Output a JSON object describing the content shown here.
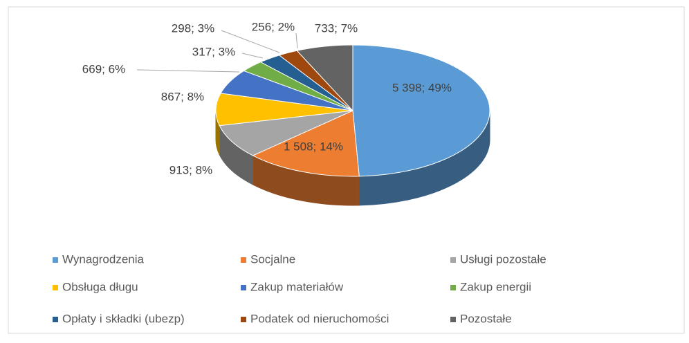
{
  "chart_data": {
    "type": "pie3d",
    "categories": [
      "Wynagrodzenia",
      "Socjalne",
      "Usługi pozostałe",
      "Obsługa długu",
      "Zakup materiałów",
      "Zakup energii",
      "Opłaty i składki (ubezp)",
      "Podatek od nieruchomości",
      "Pozostałe"
    ],
    "values": [
      5398,
      1508,
      913,
      867,
      669,
      317,
      298,
      256,
      733
    ],
    "value_labels": [
      "5 398; 49%",
      "1 508; 14%",
      "913; 8%",
      "867; 8%",
      "669; 6%",
      "317; 3%",
      "298; 3%",
      "256; 2%",
      "733; 7%"
    ],
    "colors": [
      "#5b9bd5",
      "#ed7d31",
      "#a5a5a5",
      "#ffc000",
      "#4472c4",
      "#70ad47",
      "#255e91",
      "#9e480e",
      "#636363"
    ],
    "legend": "bottom"
  }
}
